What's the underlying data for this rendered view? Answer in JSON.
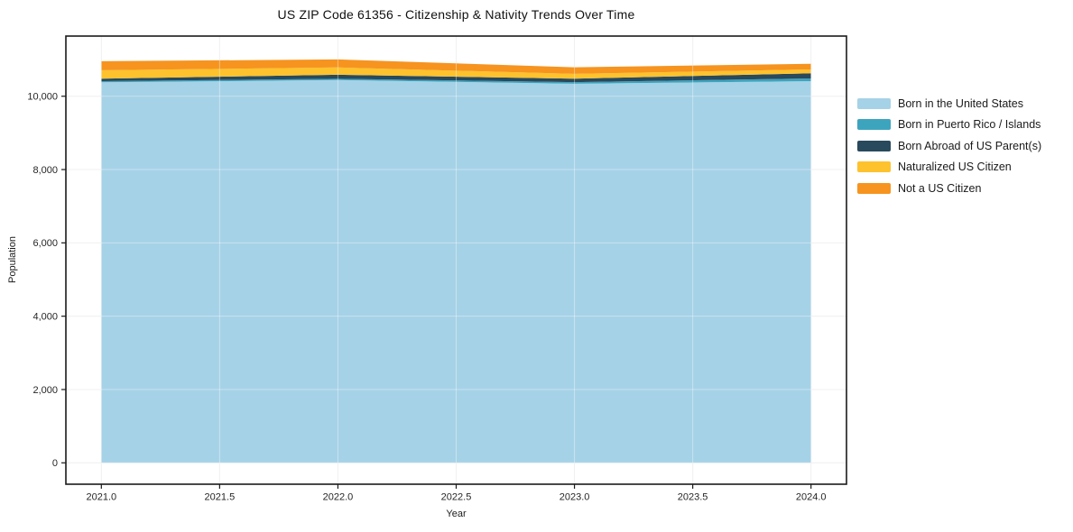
{
  "title": "US ZIP Code 61356 - Citizenship & Nativity Trends Over Time",
  "chart_data": {
    "type": "area",
    "stacked": true,
    "title": "US ZIP Code 61356 - Citizenship & Nativity Trends Over Time",
    "xlabel": "Year",
    "ylabel": "Population",
    "x": [
      2021,
      2022,
      2023,
      2024
    ],
    "series": [
      {
        "name": "Born in the United States",
        "color": "#a6d2e7",
        "values": [
          10380,
          10440,
          10340,
          10410
        ]
      },
      {
        "name": "Born in Puerto Rico / Islands",
        "color": "#3da4be",
        "values": [
          30,
          35,
          45,
          75
        ]
      },
      {
        "name": "Born Abroad of US Parent(s)",
        "color": "#29495c",
        "values": [
          70,
          110,
          95,
          140
        ]
      },
      {
        "name": "Naturalized US Citizen",
        "color": "#fdc22d",
        "values": [
          230,
          200,
          130,
          105
        ]
      },
      {
        "name": "Not a US Citizen",
        "color": "#f6941f",
        "values": [
          245,
          220,
          180,
          155
        ]
      }
    ],
    "xlim": [
      2020.85,
      2024.15
    ],
    "ylim": [
      -583,
      11641
    ],
    "x_ticks": [
      2021.0,
      2021.5,
      2022.0,
      2022.5,
      2023.0,
      2023.5,
      2024.0
    ],
    "x_tick_labels": [
      "2021.0",
      "2021.5",
      "2022.0",
      "2022.5",
      "2023.0",
      "2023.5",
      "2024.0"
    ],
    "y_ticks": [
      0,
      2000,
      4000,
      6000,
      8000,
      10000
    ],
    "y_tick_labels": [
      "0",
      "2,000",
      "4,000",
      "6,000",
      "8,000",
      "10,000"
    ],
    "grid": true,
    "legend_position": "right",
    "colors": {
      "spine": "#1a1a1a",
      "grid_under": "#e9e9e9",
      "grid_over": "rgba(255,255,255,0.38)",
      "tick_label": "#262626",
      "background": "#ffffff"
    }
  }
}
